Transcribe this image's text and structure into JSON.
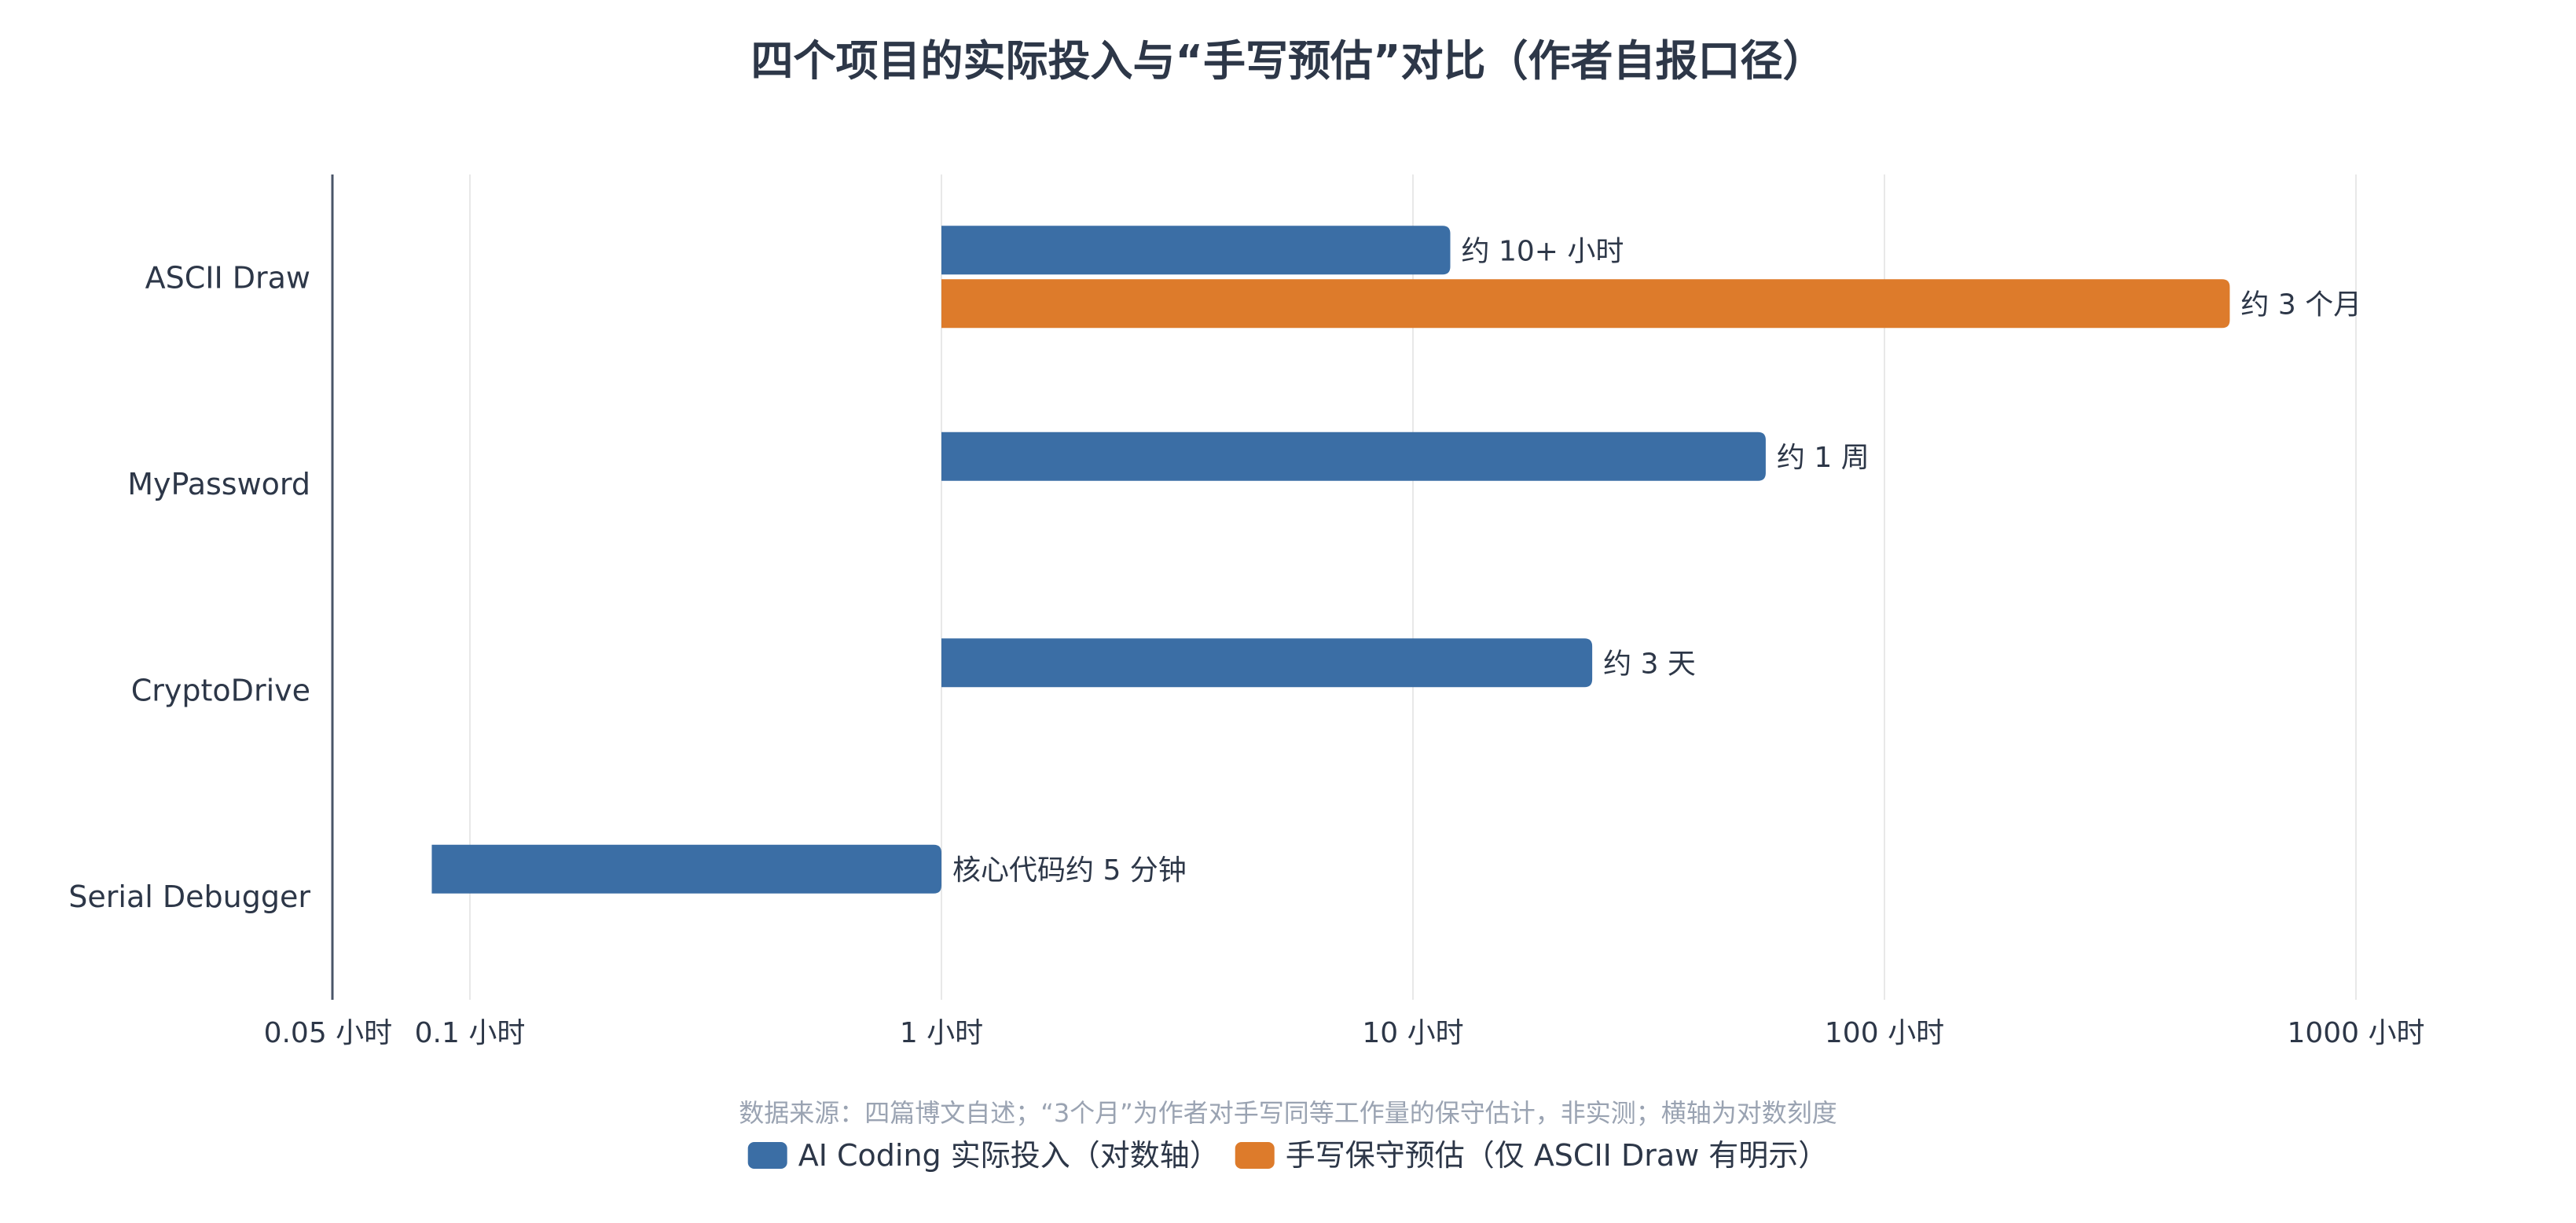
{
  "chart_data": {
    "type": "bar",
    "orientation": "horizontal",
    "title": "四个项目的实际投入与“手写预估”对比（作者自报口径）",
    "categories": [
      "ASCII Draw",
      "MyPassword",
      "CryptoDrive",
      "Serial Debugger"
    ],
    "x_scale": "log",
    "xlim": [
      0.05,
      1700
    ],
    "x_ticks": [
      {
        "value": 0.05,
        "label": "0.05 小时"
      },
      {
        "value": 0.1,
        "label": "0.1 小时"
      },
      {
        "value": 1,
        "label": "1 小时"
      },
      {
        "value": 10,
        "label": "10 小时"
      },
      {
        "value": 100,
        "label": "100 小时"
      },
      {
        "value": 1000,
        "label": "1000 小时"
      }
    ],
    "grid": true,
    "bar_base": 1,
    "series": [
      {
        "name": "AI Coding 实际投入（对数轴）",
        "color": "#3b6ea5",
        "values": [
          12,
          56,
          24,
          0.083
        ],
        "labels": [
          "约 10+ 小时",
          "约 1 周",
          "约 3 天",
          "核心代码约 5 分钟"
        ]
      },
      {
        "name": "手写保守预估（仅 ASCII Draw 有明示）",
        "color": "#dd7b2b",
        "values": [
          540,
          null,
          null,
          null
        ],
        "labels": [
          "约 3 个月",
          null,
          null,
          null
        ]
      }
    ],
    "note": "数据来源：四篇博文自述；“3个月”为作者对手写同等工作量的保守估计，非实测；横轴为对数刻度",
    "legend_position": "bottom-center"
  }
}
